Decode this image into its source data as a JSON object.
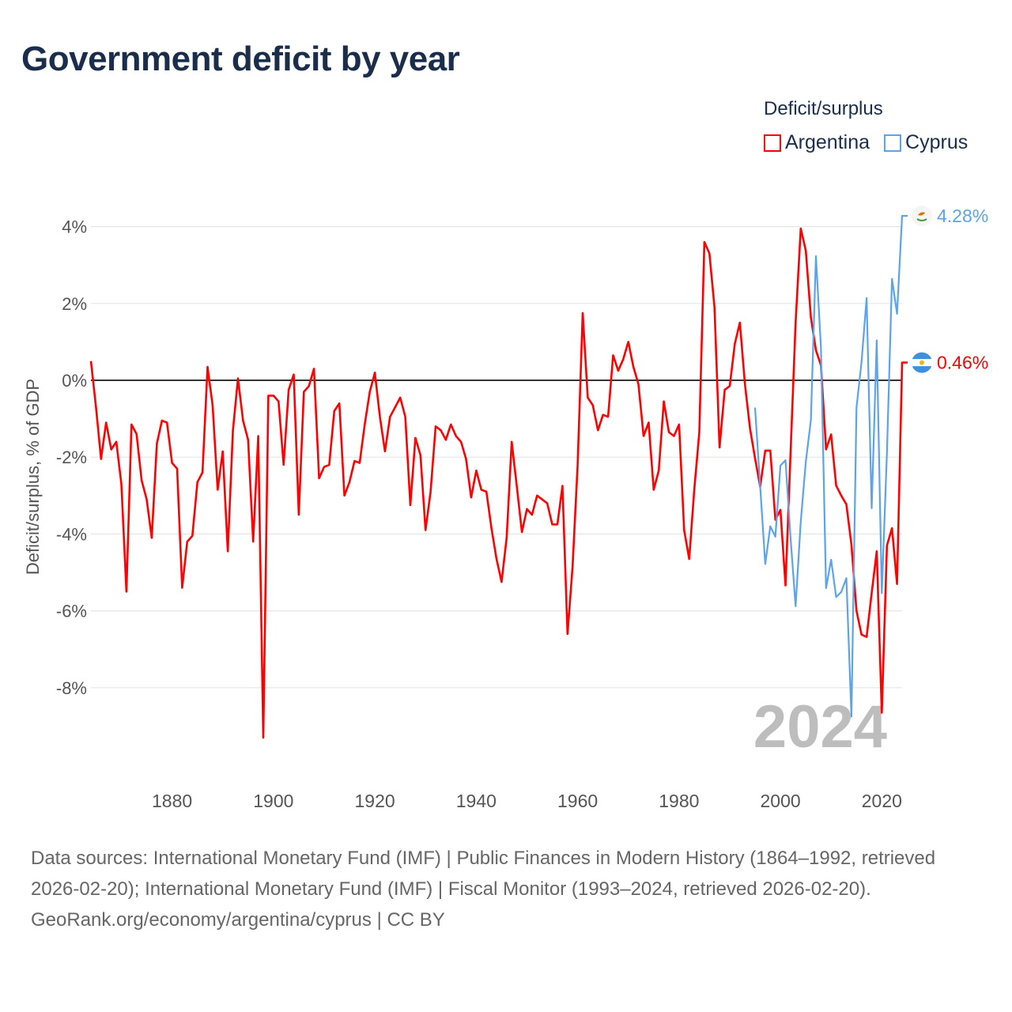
{
  "title": "Government deficit by year",
  "legend": {
    "title": "Deficit/surplus",
    "items": [
      {
        "label": "Argentina",
        "color": "#ff0000"
      },
      {
        "label": "Cyprus",
        "color": "#5ba4ec"
      }
    ]
  },
  "footer": {
    "sources": "Data sources: International Monetary Fund (IMF) | Public Finances in Modern History (1864–1992, retrieved 2026-02-20); International Monetary Fund (IMF) | Fiscal Monitor (1993–2024, retrieved 2026-02-20).",
    "attribution": "GeoRank.org/economy/argentina/cyprus | CC BY"
  },
  "chart_data": {
    "type": "line",
    "title": "Government deficit by year",
    "xlabel": "",
    "ylabel": "Deficit/surplus, % of GDP",
    "xlim": [
      1864,
      2024
    ],
    "ylim": [
      -10,
      4.5
    ],
    "xticks": [
      1880,
      1900,
      1920,
      1940,
      1960,
      1980,
      2000,
      2020
    ],
    "yticks": [
      4,
      2,
      0,
      -2,
      -4,
      -6,
      -8
    ],
    "ytick_labels": [
      "4%",
      "2%",
      "0%",
      "-2%",
      "-4%",
      "-6%",
      "-8%"
    ],
    "year_watermark": "2024",
    "legend_position": "top-right",
    "series": [
      {
        "name": "Argentina",
        "color": "#ff0000",
        "start_year": 1864,
        "end_label": "0.46%",
        "values": [
          0.5,
          -0.7,
          -2.05,
          -1.1,
          -1.8,
          -1.6,
          -2.7,
          -5.5,
          -1.15,
          -1.4,
          -2.6,
          -3.1,
          -4.1,
          -1.65,
          -1.05,
          -1.1,
          -2.15,
          -2.3,
          -5.4,
          -4.2,
          -4.05,
          -2.65,
          -2.4,
          0.35,
          -0.65,
          -2.85,
          -1.85,
          -4.45,
          -1.3,
          0.05,
          -1.05,
          -1.55,
          -4.2,
          -1.45,
          -9.3,
          -0.4,
          -0.4,
          -0.55,
          -2.2,
          -0.25,
          0.15,
          -3.5,
          -0.3,
          -0.15,
          0.3,
          -2.55,
          -2.25,
          -2.2,
          -0.8,
          -0.6,
          -3.0,
          -2.65,
          -2.1,
          -2.15,
          -1.15,
          -0.3,
          0.2,
          -0.95,
          -1.85,
          -0.95,
          -0.7,
          -0.45,
          -0.95,
          -3.25,
          -1.5,
          -1.95,
          -3.9,
          -2.9,
          -1.2,
          -1.3,
          -1.55,
          -1.15,
          -1.45,
          -1.6,
          -2.05,
          -3.05,
          -2.35,
          -2.85,
          -2.9,
          -3.85,
          -4.65,
          -5.25,
          -4.1,
          -1.6,
          -2.75,
          -3.95,
          -3.35,
          -3.5,
          -3.0,
          -3.1,
          -3.2,
          -3.75,
          -3.75,
          -2.75,
          -6.6,
          -4.85,
          -2.2,
          1.75,
          -0.45,
          -0.65,
          -1.3,
          -0.9,
          -0.95,
          0.65,
          0.25,
          0.55,
          1.0,
          0.35,
          -0.1,
          -1.45,
          -1.1,
          -2.85,
          -2.35,
          -0.55,
          -1.35,
          -1.45,
          -1.15,
          -3.9,
          -4.65,
          -2.85,
          -1.35,
          3.6,
          3.3,
          1.9,
          -1.75,
          -0.25,
          -0.15,
          0.95,
          1.5,
          -0.1,
          -1.25,
          -2.03,
          -2.77,
          -1.83,
          -1.83,
          -3.63,
          -3.37,
          -5.34,
          -1.9,
          1.51,
          3.95,
          3.37,
          1.64,
          0.78,
          0.39,
          -1.8,
          -1.41,
          -2.74,
          -3.0,
          -3.23,
          -4.28,
          -6.0,
          -6.62,
          -6.68,
          -5.54,
          -4.45,
          -8.65,
          -4.3,
          -3.85,
          -5.3,
          0.46
        ]
      },
      {
        "name": "Cyprus",
        "color": "#5ba4ec",
        "start_year": 1995,
        "end_label": "4.28%",
        "values": [
          -0.71,
          -2.77,
          -4.78,
          -3.8,
          -4.07,
          -2.22,
          -2.08,
          -4.1,
          -5.88,
          -3.68,
          -2.12,
          -1.04,
          3.23,
          0.82,
          -5.41,
          -4.67,
          -5.64,
          -5.51,
          -5.15,
          -8.75,
          -0.71,
          0.48,
          2.14,
          -3.33,
          1.04,
          -5.54,
          -1.9,
          2.64,
          1.73,
          4.28
        ]
      }
    ]
  }
}
